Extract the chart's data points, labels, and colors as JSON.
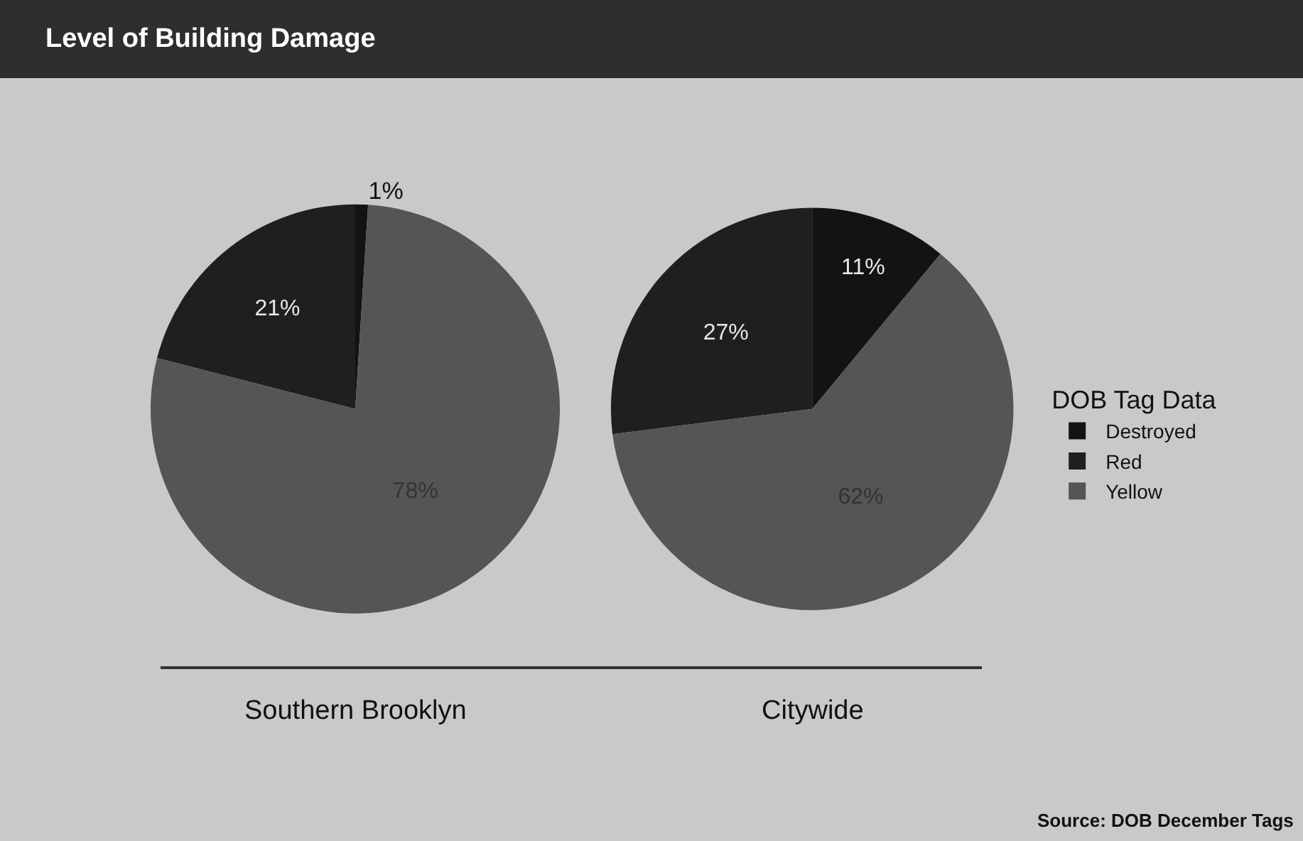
{
  "chart_data": [
    {
      "type": "pie",
      "title": "Level of Building Damage",
      "xlabel": "Southern Brooklyn",
      "categories": [
        null,
        null,
        null
      ],
      "values": [
        1,
        21,
        78
      ],
      "value_labels": [
        "1%",
        "21%",
        "78%"
      ],
      "colors": [
        "#131313",
        "#1f1f1f",
        "#555555"
      ],
      "legend": false
    },
    {
      "type": "pie",
      "xlabel": "Citywide",
      "legend_title": "DOB Tag Data",
      "categories": [
        "Destroyed",
        "Red",
        "Yellow"
      ],
      "values": [
        11,
        27,
        62
      ],
      "value_labels": [
        "11%",
        "27%",
        "62%"
      ],
      "colors": [
        "#131313",
        "#1f1f1f",
        "#555555"
      ],
      "legend": "right",
      "annotations": [
        "Source: DOB December Tags"
      ]
    }
  ]
}
